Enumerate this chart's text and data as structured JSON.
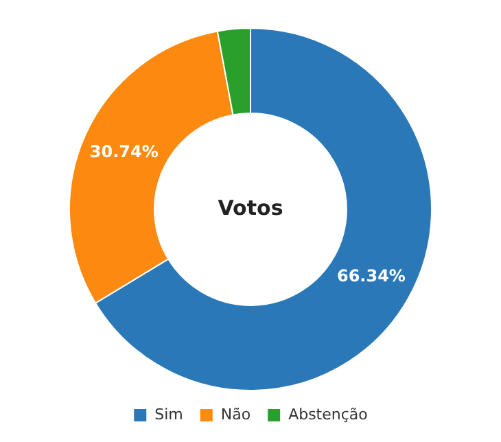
{
  "chart_data": {
    "type": "donut",
    "title": "Votos",
    "categories": [
      "Sim",
      "Não",
      "Abstenção"
    ],
    "values": [
      66.34,
      30.74,
      2.92
    ],
    "colors": [
      "#2a78b8",
      "#fd8a10",
      "#2aa02c"
    ],
    "value_labels": [
      "66.34%",
      "30.74%",
      null
    ],
    "legend": "bottom"
  }
}
